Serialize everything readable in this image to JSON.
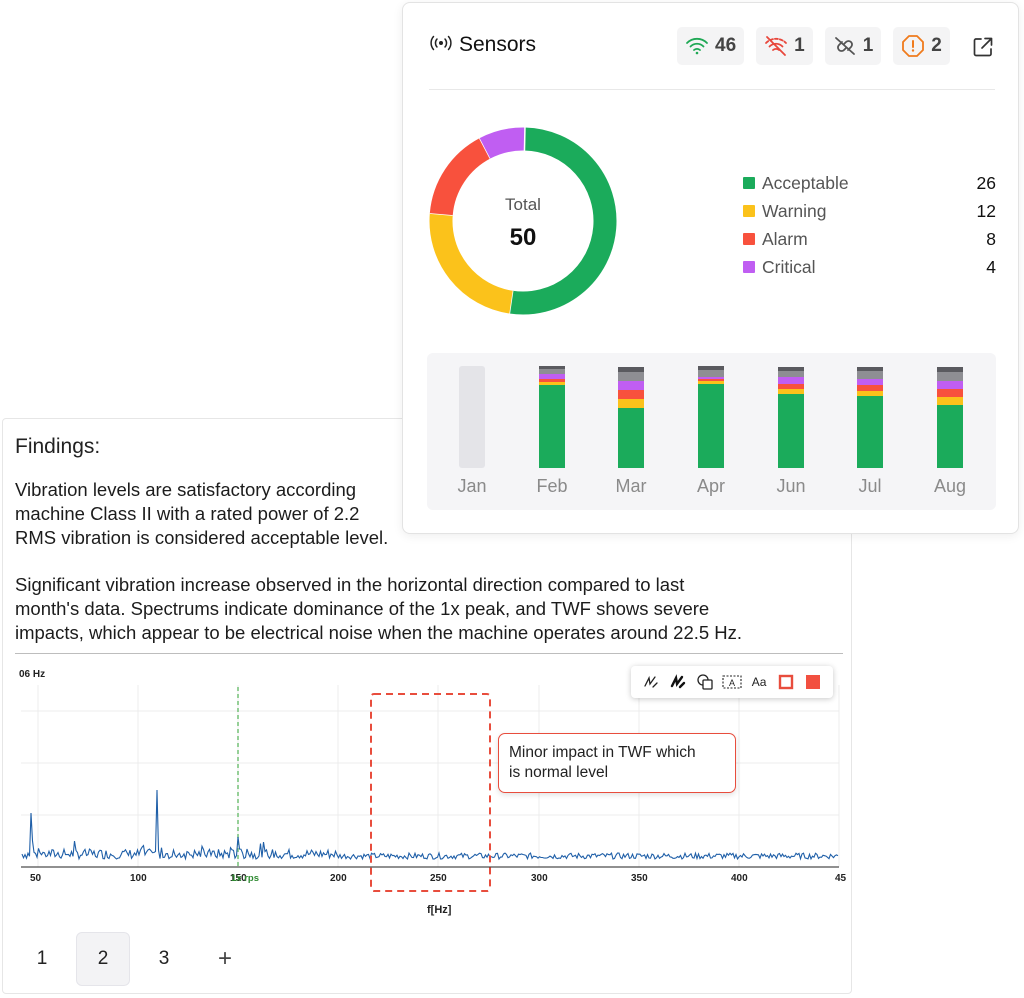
{
  "findings": {
    "title": "Findings:",
    "paragraph1": [
      "Vibration levels are satisfactory according",
      "machine Class II with a rated power of 2.2",
      "RMS vibration is considered acceptable level."
    ],
    "paragraph2": [
      "Significant vibration increase observed in the horizontal direction compared to last",
      "month's data. Spectrums indicate dominance of the 1x peak, and TWF shows severe",
      "impacts, which appear to be electrical noise when the machine operates around 22.5 Hz."
    ]
  },
  "spectrum": {
    "corner_label": "06 Hz",
    "marker_label": "1x rps",
    "xlabel": "f[Hz]",
    "tick_labels": [
      "50",
      "100",
      "150",
      "200",
      "250",
      "300",
      "350",
      "400",
      "45"
    ],
    "line_color": "#1f5fa8",
    "marker_color": "#4caf50",
    "annotation_color": "#e84d3d",
    "callout_text": [
      "Minor impact in TWF which",
      "is normal level"
    ]
  },
  "toolbar": {
    "tools": [
      "pencil-icon",
      "marker-icon",
      "shapes-icon",
      "text-box-icon",
      "font-size-icon",
      "outline-color-icon",
      "fill-color-icon"
    ],
    "font_label": "Aa",
    "text_box_label": "A"
  },
  "tabs": {
    "items": [
      "1",
      "2",
      "3"
    ],
    "active_index": 1,
    "add_label": "+"
  },
  "sensors": {
    "title": "Sensors",
    "badges": [
      {
        "icon": "wifi-icon",
        "count": "46",
        "color": "#1fa855"
      },
      {
        "icon": "wifi-off-icon",
        "count": "1",
        "color": "#e8473c"
      },
      {
        "icon": "link-off-icon",
        "count": "1",
        "color": "#555555"
      },
      {
        "icon": "alert-octagon-icon",
        "count": "2",
        "color": "#f07b1d"
      }
    ],
    "total_label": "Total",
    "total_value": "50",
    "legend": [
      {
        "name": "Acceptable",
        "value": "26",
        "color": "#1bab5b"
      },
      {
        "name": "Warning",
        "value": "12",
        "color": "#fbc21b"
      },
      {
        "name": "Alarm",
        "value": "8",
        "color": "#f8513d"
      },
      {
        "name": "Critical",
        "value": "4",
        "color": "#c05ef2"
      }
    ],
    "months": [
      {
        "label": "Jan",
        "empty": true,
        "segments": []
      },
      {
        "label": "Feb",
        "empty": false,
        "segments": [
          {
            "color": "#1bab5b",
            "v": 0.81
          },
          {
            "color": "#fbc21b",
            "v": 0.03
          },
          {
            "color": "#f8513d",
            "v": 0.03
          },
          {
            "color": "#c05ef2",
            "v": 0.05
          },
          {
            "color": "#8e8e93",
            "v": 0.05
          },
          {
            "color": "#5a5a5f",
            "v": 0.03
          }
        ]
      },
      {
        "label": "Mar",
        "empty": false,
        "segments": [
          {
            "color": "#1bab5b",
            "v": 0.59
          },
          {
            "color": "#fbc21b",
            "v": 0.09
          },
          {
            "color": "#f8513d",
            "v": 0.09
          },
          {
            "color": "#c05ef2",
            "v": 0.09
          },
          {
            "color": "#8e8e93",
            "v": 0.09
          },
          {
            "color": "#5a5a5f",
            "v": 0.05
          }
        ]
      },
      {
        "label": "Apr",
        "empty": false,
        "segments": [
          {
            "color": "#1bab5b",
            "v": 0.82
          },
          {
            "color": "#fbc21b",
            "v": 0.03
          },
          {
            "color": "#f8513d",
            "v": 0.02
          },
          {
            "color": "#c05ef2",
            "v": 0.02
          },
          {
            "color": "#8e8e93",
            "v": 0.07
          },
          {
            "color": "#5a5a5f",
            "v": 0.04
          }
        ]
      },
      {
        "label": "Jun",
        "empty": false,
        "segments": [
          {
            "color": "#1bab5b",
            "v": 0.73
          },
          {
            "color": "#fbc21b",
            "v": 0.05
          },
          {
            "color": "#f8513d",
            "v": 0.05
          },
          {
            "color": "#c05ef2",
            "v": 0.07
          },
          {
            "color": "#8e8e93",
            "v": 0.06
          },
          {
            "color": "#5a5a5f",
            "v": 0.04
          }
        ]
      },
      {
        "label": "Jul",
        "empty": false,
        "segments": [
          {
            "color": "#1bab5b",
            "v": 0.71
          },
          {
            "color": "#fbc21b",
            "v": 0.05
          },
          {
            "color": "#f8513d",
            "v": 0.06
          },
          {
            "color": "#c05ef2",
            "v": 0.06
          },
          {
            "color": "#8e8e93",
            "v": 0.08
          },
          {
            "color": "#5a5a5f",
            "v": 0.04
          }
        ]
      },
      {
        "label": "Aug",
        "empty": false,
        "segments": [
          {
            "color": "#1bab5b",
            "v": 0.62
          },
          {
            "color": "#fbc21b",
            "v": 0.08
          },
          {
            "color": "#f8513d",
            "v": 0.08
          },
          {
            "color": "#c05ef2",
            "v": 0.08
          },
          {
            "color": "#8e8e93",
            "v": 0.09
          },
          {
            "color": "#5a5a5f",
            "v": 0.05
          }
        ]
      }
    ]
  }
}
